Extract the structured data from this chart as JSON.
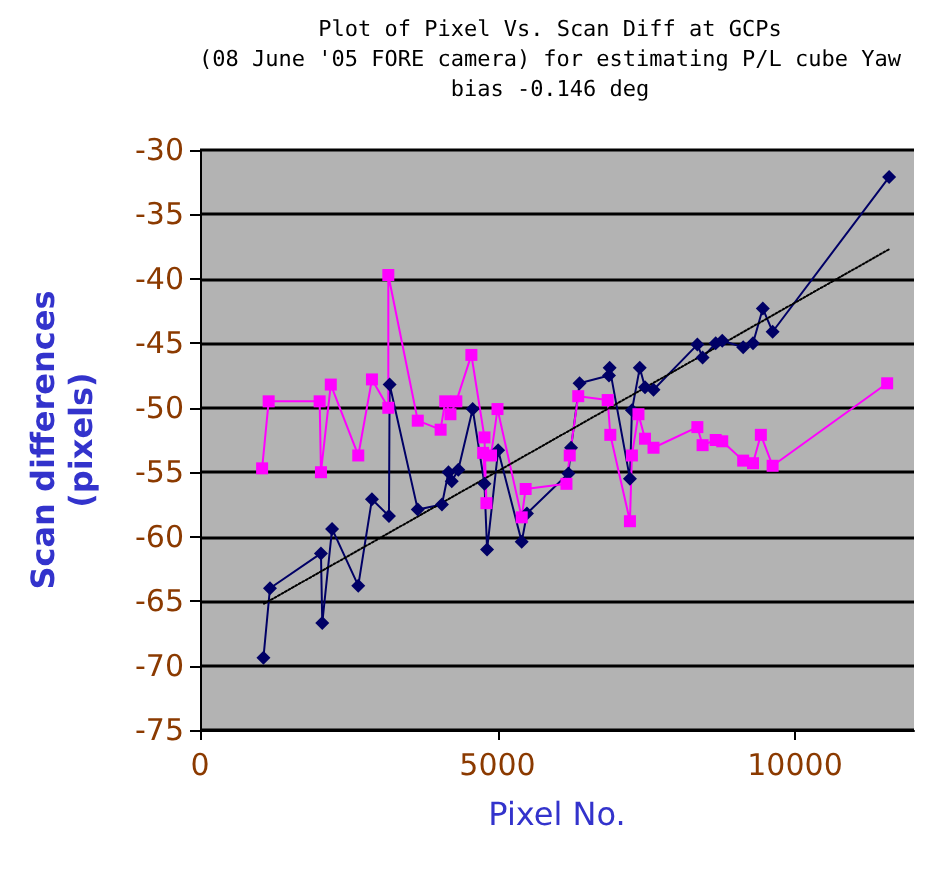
{
  "chart_data": {
    "type": "line",
    "title": "Plot of Pixel Vs. Scan Diff at GCPs\n(08 June '05 FORE camera) for estimating P/L cube Yaw\nbias -0.146 deg",
    "xlabel": "Pixel No.",
    "ylabel": "Scan differences\n(pixels)",
    "xlim": [
      0,
      12000
    ],
    "xticks": [
      0,
      5000,
      10000
    ],
    "ylim": [
      -75,
      -30
    ],
    "yticks": [
      -75,
      -70,
      -65,
      -60,
      -55,
      -50,
      -45,
      -40,
      -35,
      -30
    ],
    "grid": "y",
    "series": [
      {
        "color": "#000066",
        "marker": "diamond",
        "x": [
          1066,
          1176,
          2033,
          2055,
          2220,
          2660,
          2890,
          3176,
          3187,
          3660,
          4066,
          4176,
          4231,
          4341,
          4583,
          4781,
          4825,
          5011,
          5407,
          5495,
          6192,
          6236,
          6379,
          6874,
          6885,
          7226,
          7259,
          7391,
          7479,
          7622,
          8359,
          8447,
          8667,
          8777,
          9129,
          9294,
          9459,
          9624,
          11582
        ],
        "values": [
          -69.4,
          -64.0,
          -61.3,
          -66.7,
          -59.4,
          -63.8,
          -57.1,
          -58.4,
          -48.2,
          -57.9,
          -57.5,
          -55.0,
          -55.7,
          -54.8,
          -50.1,
          -55.9,
          -61.0,
          -53.3,
          -60.4,
          -58.2,
          -55.1,
          -53.1,
          -48.1,
          -47.5,
          -46.9,
          -55.5,
          -50.2,
          -46.9,
          -48.4,
          -48.6,
          -45.1,
          -46.1,
          -45.0,
          -44.8,
          -45.3,
          -45.0,
          -42.3,
          -44.1,
          -32.1
        ]
      },
      {
        "color": "#ff00ff",
        "marker": "square",
        "x": [
          1044,
          1154,
          2011,
          2033,
          2198,
          2660,
          2890,
          3165,
          3165,
          3660,
          4044,
          4121,
          4209,
          4308,
          4561,
          4781,
          4814,
          4759,
          4891,
          5000,
          5407,
          5473,
          6159,
          6214,
          6357,
          6852,
          6896,
          7226,
          7259,
          7369,
          7479,
          7622,
          8359,
          8447,
          8667,
          8777,
          9129,
          9294,
          9426,
          9624,
          11549
        ],
        "values": [
          -54.7,
          -49.5,
          -49.5,
          -55.0,
          -48.2,
          -53.7,
          -47.8,
          -50.0,
          -39.7,
          -51.0,
          -51.7,
          -49.5,
          -50.5,
          -49.5,
          -45.9,
          -52.3,
          -57.4,
          -53.5,
          -53.7,
          -50.1,
          -58.5,
          -56.3,
          -55.9,
          -53.7,
          -49.1,
          -49.4,
          -52.1,
          -58.8,
          -53.7,
          -50.5,
          -52.4,
          -53.1,
          -51.5,
          -52.9,
          -52.5,
          -52.6,
          -54.1,
          -54.3,
          -52.1,
          -54.5,
          -48.1
        ]
      },
      {
        "color": "#000000",
        "marker": "none",
        "line_style": "dotted",
        "x": [
          1077,
          11582
        ],
        "values": [
          -65.2,
          -37.7
        ]
      }
    ]
  }
}
